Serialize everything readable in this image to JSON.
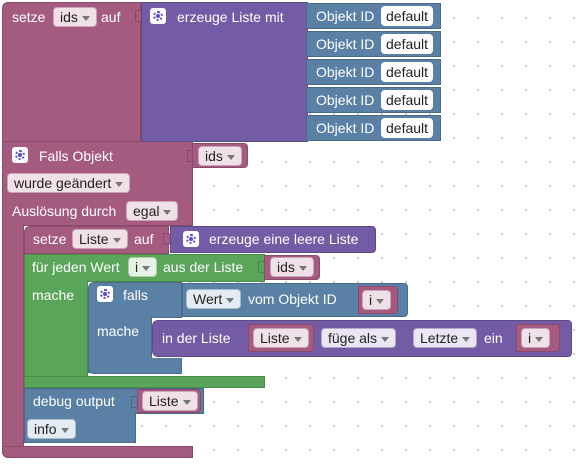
{
  "set_ids": {
    "label": "setze",
    "var": "ids",
    "to": "auf"
  },
  "create_list": {
    "label": "erzeuge Liste mit"
  },
  "object_ids": [
    {
      "label": "Objekt ID",
      "value": "default"
    },
    {
      "label": "Objekt ID",
      "value": "default"
    },
    {
      "label": "Objekt ID",
      "value": "default"
    },
    {
      "label": "Objekt ID",
      "value": "default"
    },
    {
      "label": "Objekt ID",
      "value": "default"
    }
  ],
  "trigger": {
    "title": "Falls Objekt",
    "var": "ids",
    "condition": "wurde geändert",
    "trigger_label": "Auslösung durch",
    "trigger_value": "egal"
  },
  "set_liste": {
    "label": "setze",
    "var": "Liste",
    "to": "auf",
    "value": "erzeuge eine leere Liste"
  },
  "foreach": {
    "label": "für jeden Wert",
    "var": "i",
    "from_label": "aus der Liste",
    "list_var": "ids",
    "do_label": "mache"
  },
  "if_block": {
    "label": "falls",
    "do_label": "mache"
  },
  "get_value": {
    "attr": "Wert",
    "from_label": "vom Objekt ID",
    "var": "i"
  },
  "insert": {
    "label": "in der Liste",
    "list_var": "Liste",
    "mode": "füge als",
    "position": "Letzte",
    "suffix": "ein",
    "var": "i"
  },
  "debug": {
    "label": "debug output",
    "var": "Liste",
    "level": "info"
  },
  "colors": {
    "variable": "#a55b80",
    "list": "#745ba5",
    "object": "#5b80a5",
    "loop": "#5ba55b"
  }
}
